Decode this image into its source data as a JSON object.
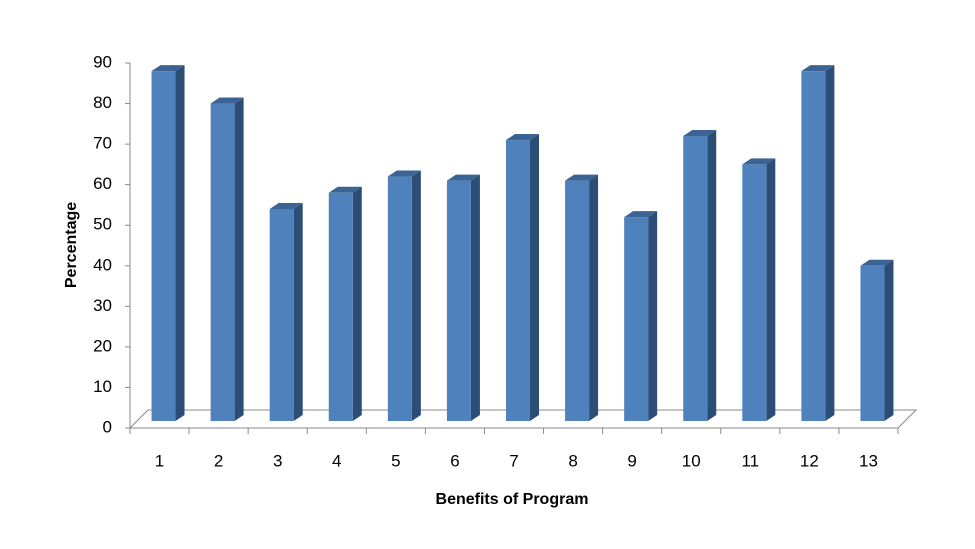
{
  "chart_data": {
    "type": "bar3d",
    "x_label": "Benefits of Program",
    "y_label": "Percentage",
    "categories": [
      "1",
      "2",
      "3",
      "4",
      "5",
      "6",
      "7",
      "8",
      "9",
      "10",
      "11",
      "12",
      "13"
    ],
    "values": [
      88,
      80,
      54,
      58,
      62,
      61,
      71,
      61,
      52,
      72,
      65,
      88,
      40
    ],
    "color": "#4f81bd",
    "ylim": [
      0,
      90
    ],
    "yticks": [
      0,
      10,
      20,
      30,
      40,
      50,
      60,
      70,
      80,
      90
    ]
  }
}
